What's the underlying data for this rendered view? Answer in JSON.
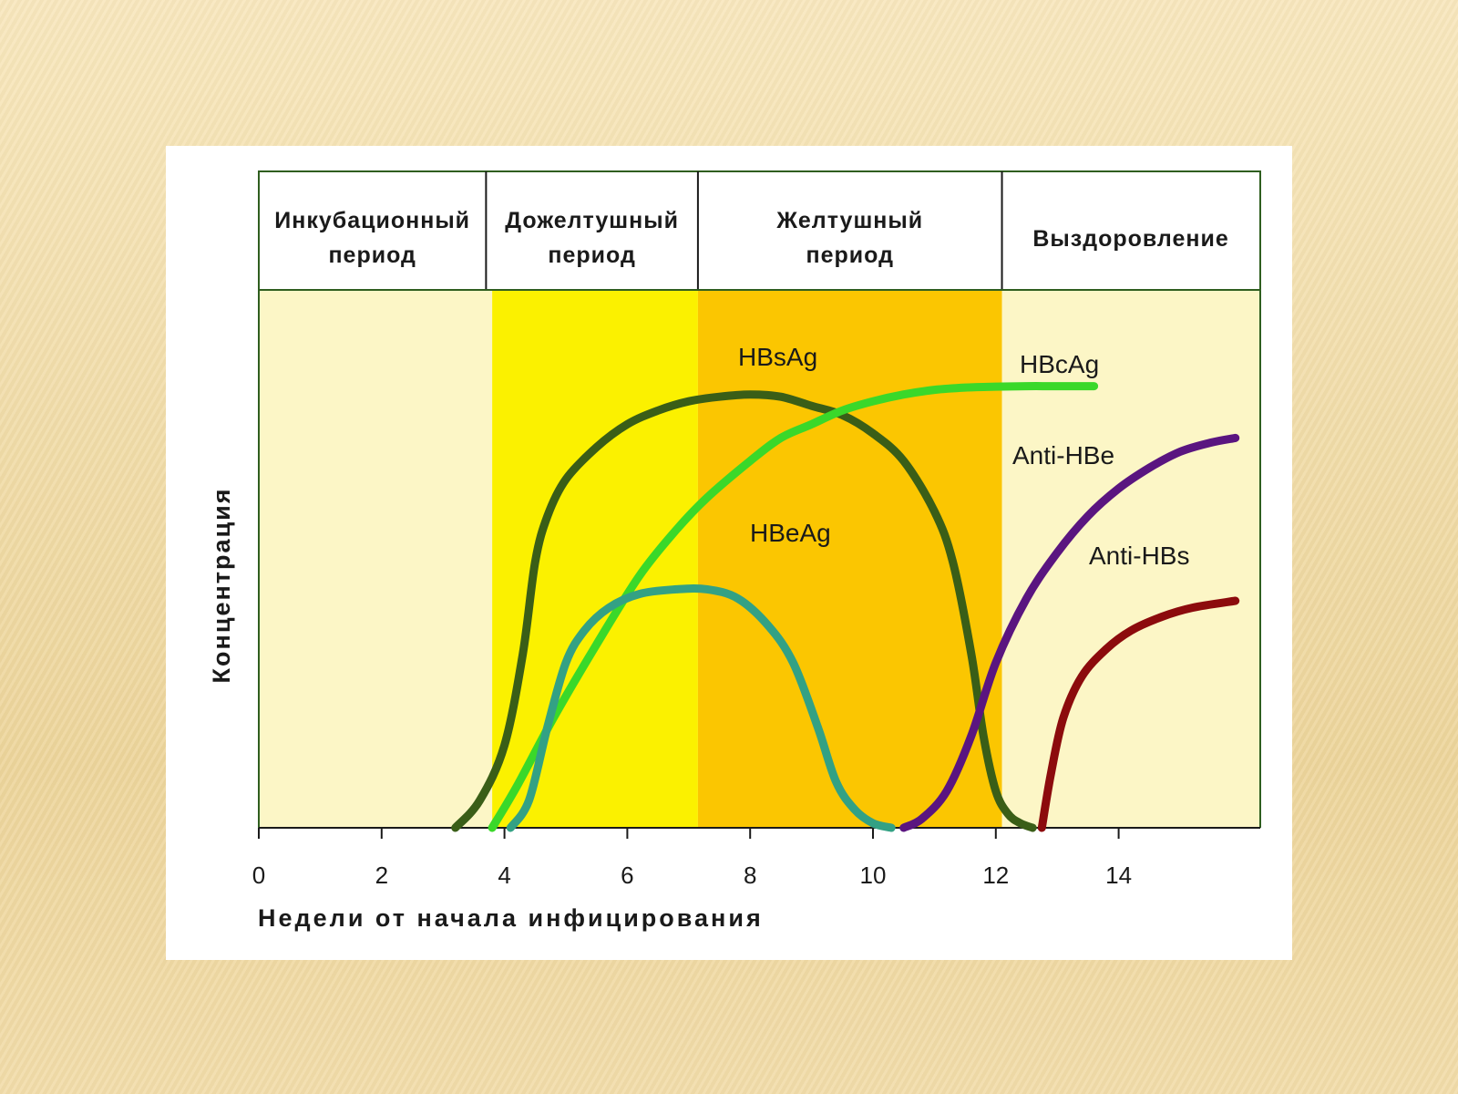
{
  "chart_data": {
    "type": "line",
    "title": "",
    "xlabel": "Недели от начала инфицирования",
    "ylabel": "Концентрация",
    "xlim": [
      0,
      16.3
    ],
    "ylim": [
      0,
      100
    ],
    "x_ticks": [
      "0",
      "2",
      "4",
      "6",
      "8",
      "10",
      "12",
      "14"
    ],
    "grid": false,
    "periods": [
      {
        "label_line1": "Инкубационный",
        "label_line2": "период",
        "start": 0,
        "end": 3.7,
        "band_start": 0,
        "band_end": 3.8,
        "color": "#fcf6c6"
      },
      {
        "label_line1": "Дожелтушный",
        "label_line2": "период",
        "start": 3.7,
        "end": 7.15,
        "band_start": 3.8,
        "band_end": 7.15,
        "color": "#fbf100"
      },
      {
        "label_line1": "Желтушный",
        "label_line2": "период",
        "start": 7.15,
        "end": 12.1,
        "band_start": 7.15,
        "band_end": 12.1,
        "color": "#fbc601"
      },
      {
        "label_line1": "Выздоровление",
        "label_line2": "",
        "start": 12.1,
        "end": 16.3,
        "band_start": 12.1,
        "band_end": 16.3,
        "color": "#fcf6c6"
      }
    ],
    "series": [
      {
        "name": "HBsAg",
        "color": "#3a5e17",
        "x": [
          3.2,
          3.6,
          4.0,
          4.3,
          4.5,
          4.7,
          5.0,
          5.5,
          6.0,
          6.5,
          7.0,
          7.5,
          8.0,
          8.5,
          9.0,
          9.5,
          10.0,
          10.5,
          11.0,
          11.3,
          11.6,
          11.8,
          12.0,
          12.2,
          12.4,
          12.6
        ],
        "y": [
          0,
          6,
          18,
          38,
          58,
          68,
          76,
          83,
          88,
          91,
          93,
          94,
          94.5,
          94,
          92,
          90,
          86,
          80,
          69,
          58,
          38,
          20,
          8,
          3,
          1,
          0
        ]
      },
      {
        "name": "HBcAg",
        "color": "#3ad82a",
        "x": [
          3.8,
          4.2,
          4.8,
          5.5,
          6.2,
          6.8,
          7.3,
          8.0,
          8.5,
          9.0,
          9.5,
          10.0,
          10.5,
          11.0,
          11.5,
          12.0,
          12.5,
          13.0,
          13.6
        ],
        "y": [
          0,
          9,
          24,
          40,
          55,
          65,
          72,
          80,
          85,
          88,
          91,
          93,
          94.5,
          95.5,
          96,
          96.2,
          96.3,
          96.3,
          96.3
        ]
      },
      {
        "name": "HBeAg",
        "color": "#33a184",
        "x": [
          4.1,
          4.4,
          4.7,
          5.0,
          5.3,
          5.7,
          6.2,
          6.8,
          7.3,
          7.8,
          8.3,
          8.7,
          9.1,
          9.4,
          9.7,
          10.0,
          10.3
        ],
        "y": [
          0,
          6,
          22,
          36,
          43,
          48,
          51,
          52,
          52,
          50,
          44,
          36,
          22,
          10,
          4,
          1,
          0
        ]
      },
      {
        "name": "Anti-HBe",
        "color": "#5a1580",
        "x": [
          10.5,
          10.8,
          11.2,
          11.6,
          12.0,
          12.5,
          13.0,
          13.5,
          14.0,
          14.5,
          15.0,
          15.5,
          15.9
        ],
        "y": [
          0,
          2,
          8,
          20,
          36,
          50,
          60,
          68,
          74,
          78.5,
          82,
          84,
          85
        ]
      },
      {
        "name": "Anti-HBs",
        "color": "#8c0b0d",
        "x": [
          12.75,
          12.9,
          13.1,
          13.4,
          13.8,
          14.2,
          14.7,
          15.2,
          15.9
        ],
        "y": [
          0,
          12,
          24,
          33,
          39,
          43,
          46,
          48,
          49.5
        ]
      }
    ]
  }
}
